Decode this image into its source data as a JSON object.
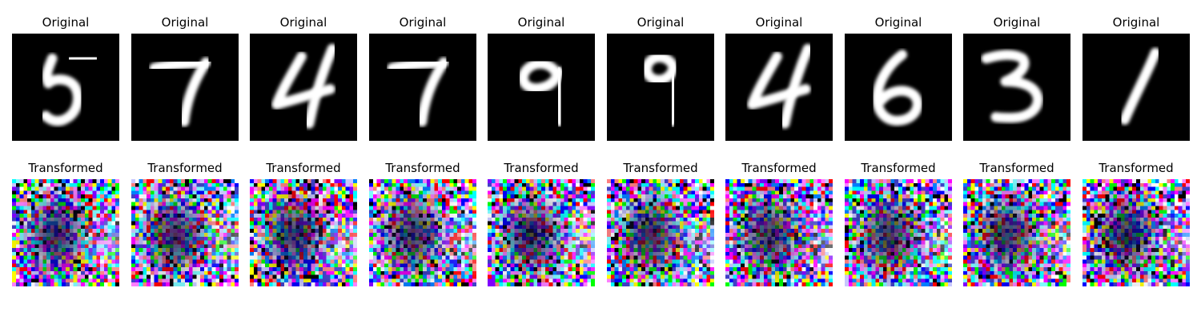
{
  "panels": [
    {
      "top_title": "Original",
      "bottom_title": "Transformed",
      "digit": "5"
    },
    {
      "top_title": "Original",
      "bottom_title": "Transformed",
      "digit": "7"
    },
    {
      "top_title": "Original",
      "bottom_title": "Transformed",
      "digit": "4"
    },
    {
      "top_title": "Original",
      "bottom_title": "Transformed",
      "digit": "7"
    },
    {
      "top_title": "Original",
      "bottom_title": "Transformed",
      "digit": "9"
    },
    {
      "top_title": "Original",
      "bottom_title": "Transformed",
      "digit": "9"
    },
    {
      "top_title": "Original",
      "bottom_title": "Transformed",
      "digit": "4"
    },
    {
      "top_title": "Original",
      "bottom_title": "Transformed",
      "digit": "6"
    },
    {
      "top_title": "Original",
      "bottom_title": "Transformed",
      "digit": "3"
    },
    {
      "top_title": "Original",
      "bottom_title": "Transformed",
      "digit": "1"
    }
  ],
  "colors": {
    "background": "#ffffff",
    "original_bg": "#000000",
    "original_stroke": "#ffffff"
  }
}
